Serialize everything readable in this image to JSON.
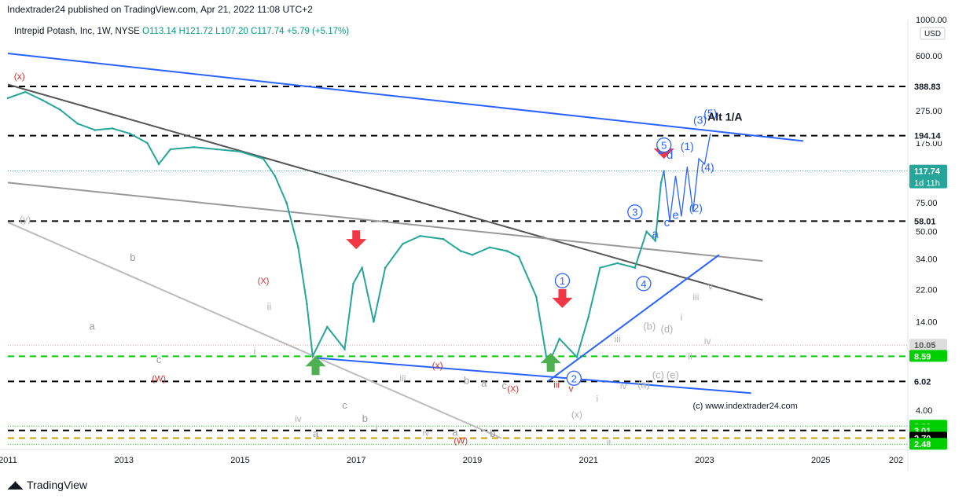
{
  "header": {
    "publisher": "Indextrader24 published on TradingView.com, Apr 21, 2022 11:08 UTC+2"
  },
  "symbol": {
    "name": "Intrepid Potash, Inc, 1W, NYSE",
    "open": "O113.14",
    "high": "H121.72",
    "low": "L107.20",
    "close": "C117.74",
    "change": "+5.79 (+5.17%)"
  },
  "footer": {
    "brand": "TradingView"
  },
  "chart_data": {
    "type": "line",
    "yscale": "log",
    "currency": "USD",
    "y_ticks": [
      "1000.00",
      "600.00",
      "275.00",
      "175.00",
      "75.00",
      "50.00",
      "34.00",
      "22.00",
      "14.00",
      "4.00"
    ],
    "x_ticks": [
      "2011",
      "2013",
      "2015",
      "2017",
      "2019",
      "2021",
      "2023",
      "2025",
      "202"
    ],
    "price_labels": [
      {
        "value": 388.83,
        "text": "388.83",
        "bg": "#ffffff",
        "fg": "#131722",
        "line": "#000000",
        "dash": "8,6",
        "lw": 2
      },
      {
        "value": 194.14,
        "text": "194.14",
        "bg": "#ffffff",
        "fg": "#131722",
        "line": "#000000",
        "dash": "8,6",
        "lw": 2
      },
      {
        "value": 117.74,
        "text": "117.74",
        "sub": "1d 11h",
        "bg": "#26a69a",
        "fg": "#ffffff",
        "line": "#26a69a",
        "dash": "1,2",
        "lw": 1
      },
      {
        "value": 58.01,
        "text": "58.01",
        "bg": "#ffffff",
        "fg": "#131722",
        "line": "#000000",
        "dash": "8,6",
        "lw": 2
      },
      {
        "value": 10.05,
        "text": "10.05",
        "bg": "#dddddd",
        "fg": "#555555",
        "line": "#e0a0a0",
        "dash": "1,2",
        "lw": 1
      },
      {
        "value": 8.59,
        "text": "8.59",
        "bg": "#00d000",
        "fg": "#ffffff",
        "line": "#00cc00",
        "dash": "8,6",
        "lw": 2
      },
      {
        "value": 6.02,
        "text": "6.02",
        "bg": "#ffffff",
        "fg": "#131722",
        "line": "#000000",
        "dash": "8,6",
        "lw": 2
      },
      {
        "value": 3.2,
        "text": "3.20",
        "bg": "#00d000",
        "fg": "#ffffff",
        "line": "#00cc00",
        "dash": "1,2",
        "lw": 1
      },
      {
        "value": 3.01,
        "text": "3.01",
        "bg": "#00d000",
        "fg": "#ffffff",
        "line": "#000000",
        "dash": "8,6",
        "lw": 2
      },
      {
        "value": 2.7,
        "text": "2.70",
        "bg": "#000000",
        "fg": "#ffffff",
        "line": "#c8a000",
        "dash": "8,6",
        "lw": 2
      },
      {
        "value": 2.48,
        "text": "2.48",
        "bg": "#00d000",
        "fg": "#ffffff",
        "line": "#00cc00",
        "dash": "1,2",
        "lw": 1
      }
    ],
    "series": [
      {
        "role": "price",
        "color": "#26a69a",
        "points": [
          [
            2011.0,
            330
          ],
          [
            2011.3,
            360
          ],
          [
            2011.6,
            320
          ],
          [
            2011.9,
            280
          ],
          [
            2012.2,
            230
          ],
          [
            2012.5,
            210
          ],
          [
            2012.8,
            215
          ],
          [
            2013.1,
            200
          ],
          [
            2013.4,
            175
          ],
          [
            2013.6,
            130
          ],
          [
            2013.8,
            160
          ],
          [
            2014.2,
            165
          ],
          [
            2014.6,
            160
          ],
          [
            2015.0,
            155
          ],
          [
            2015.4,
            140
          ],
          [
            2015.6,
            110
          ],
          [
            2015.8,
            75
          ],
          [
            2016.0,
            40
          ],
          [
            2016.15,
            18
          ],
          [
            2016.25,
            8.6
          ],
          [
            2016.5,
            13
          ],
          [
            2016.8,
            9.5
          ],
          [
            2016.95,
            24
          ],
          [
            2017.1,
            30
          ],
          [
            2017.3,
            14
          ],
          [
            2017.5,
            30
          ],
          [
            2017.8,
            42
          ],
          [
            2018.1,
            47
          ],
          [
            2018.5,
            45
          ],
          [
            2018.8,
            38
          ],
          [
            2019.0,
            36
          ],
          [
            2019.3,
            40
          ],
          [
            2019.6,
            38
          ],
          [
            2019.8,
            35
          ],
          [
            2020.1,
            20
          ],
          [
            2020.3,
            7.5
          ],
          [
            2020.5,
            11
          ],
          [
            2020.8,
            8.5
          ],
          [
            2021.0,
            15
          ],
          [
            2021.2,
            30
          ],
          [
            2021.5,
            32
          ],
          [
            2021.8,
            30
          ],
          [
            2022.0,
            50
          ],
          [
            2022.15,
            44
          ],
          [
            2022.25,
            100
          ],
          [
            2022.3,
            117.74
          ]
        ]
      }
    ],
    "trendlines": [
      {
        "from": [
          2011.0,
          620
        ],
        "to": [
          2024.7,
          180
        ],
        "color": "#2962ff",
        "lw": 2
      },
      {
        "from": [
          2011.0,
          400
        ],
        "to": [
          2024.0,
          19
        ],
        "color": "#555555",
        "lw": 2
      },
      {
        "from": [
          2011.0,
          100
        ],
        "to": [
          2024.0,
          33
        ],
        "color": "#999999",
        "lw": 2
      },
      {
        "from": [
          2011.0,
          57
        ],
        "to": [
          2019.5,
          2.7
        ],
        "color": "#bbbbbb",
        "lw": 2
      },
      {
        "from": [
          2016.3,
          8.4
        ],
        "to": [
          2023.8,
          5.1
        ],
        "color": "#2962ff",
        "lw": 2
      },
      {
        "from": [
          2020.3,
          6.02
        ],
        "to": [
          2023.25,
          36
        ],
        "color": "#2962ff",
        "lw": 2
      }
    ],
    "projection": {
      "color": "#2962ff",
      "points": [
        [
          2022.3,
          117
        ],
        [
          2022.4,
          58
        ],
        [
          2022.5,
          110
        ],
        [
          2022.6,
          62
        ],
        [
          2022.7,
          125
        ],
        [
          2022.8,
          66
        ],
        [
          2022.9,
          140
        ],
        [
          2023.0,
          130
        ],
        [
          2023.1,
          200
        ]
      ]
    },
    "arrows": [
      {
        "x": 2016.3,
        "y": 8.6,
        "dir": "up",
        "color": "#4caf50"
      },
      {
        "x": 2017.0,
        "y": 39,
        "dir": "down",
        "color": "#f23645"
      },
      {
        "x": 2020.35,
        "y": 9.0,
        "dir": "up",
        "color": "#4caf50"
      },
      {
        "x": 2020.55,
        "y": 17,
        "dir": "down",
        "color": "#f23645"
      },
      {
        "x": 2022.3,
        "y": 140,
        "dir": "down",
        "color": "#f23645"
      }
    ],
    "wave_labels": [
      {
        "text": "(x)",
        "x": 2011.2,
        "y": 430,
        "color": "#d32f2f",
        "size": 12
      },
      {
        "text": "(y)",
        "x": 2011.3,
        "y": 57,
        "color": "#b0b0b0",
        "size": 12
      },
      {
        "text": "b",
        "x": 2013.15,
        "y": 33,
        "color": "#999999",
        "size": 13
      },
      {
        "text": "a",
        "x": 2012.45,
        "y": 12.5,
        "color": "#999999",
        "size": 13
      },
      {
        "text": "c",
        "x": 2013.6,
        "y": 7.8,
        "color": "#999999",
        "size": 13
      },
      {
        "text": "(X)",
        "x": 2015.4,
        "y": 24,
        "color": "#d32f2f",
        "size": 11
      },
      {
        "text": "(W)",
        "x": 2013.6,
        "y": 6.0,
        "color": "#d32f2f",
        "size": 11
      },
      {
        "text": "ii",
        "x": 2015.5,
        "y": 16.5,
        "color": "#b0b0b0",
        "size": 13
      },
      {
        "text": "i",
        "x": 2015.25,
        "y": 8.8,
        "color": "#b0b0b0",
        "size": 13
      },
      {
        "text": "iv",
        "x": 2016.0,
        "y": 3.4,
        "color": "#b0b0b0",
        "size": 12
      },
      {
        "text": "a",
        "x": 2016.3,
        "y": 2.75,
        "color": "#999999",
        "size": 13
      },
      {
        "text": "c",
        "x": 2016.8,
        "y": 4.1,
        "color": "#999999",
        "size": 13
      },
      {
        "text": "b",
        "x": 2017.15,
        "y": 3.4,
        "color": "#999999",
        "size": 13
      },
      {
        "text": "i",
        "x": 2017.35,
        "y": 3.0,
        "color": "#b0b0b0",
        "size": 12
      },
      {
        "text": "iii",
        "x": 2017.8,
        "y": 6.0,
        "color": "#b0b0b0",
        "size": 12
      },
      {
        "text": "iv",
        "x": 2018.2,
        "y": 2.8,
        "color": "#b0b0b0",
        "size": 12
      },
      {
        "text": "(x)",
        "x": 2018.4,
        "y": 7.2,
        "color": "#d32f2f",
        "size": 12
      },
      {
        "text": "b",
        "x": 2018.9,
        "y": 5.8,
        "color": "#999999",
        "size": 13
      },
      {
        "text": "a",
        "x": 2019.2,
        "y": 5.6,
        "color": "#999999",
        "size": 13
      },
      {
        "text": "c",
        "x": 2019.55,
        "y": 5.4,
        "color": "#999999",
        "size": 13
      },
      {
        "text": "a",
        "x": 2018.7,
        "y": 2.8,
        "color": "#999999",
        "size": 13
      },
      {
        "text": "b",
        "x": 2019.35,
        "y": 2.75,
        "color": "#999999",
        "size": 13
      },
      {
        "text": "(W)",
        "x": 2018.8,
        "y": 2.5,
        "color": "#d32f2f",
        "size": 11
      },
      {
        "text": "(X)",
        "x": 2019.7,
        "y": 5.2,
        "color": "#d32f2f",
        "size": 11
      },
      {
        "text": "iii",
        "x": 2020.45,
        "y": 5.5,
        "color": "#d32f2f",
        "size": 12
      },
      {
        "text": "v",
        "x": 2020.7,
        "y": 5.2,
        "color": "#d32f2f",
        "size": 12
      },
      {
        "text": "(x)",
        "x": 2020.8,
        "y": 3.6,
        "color": "#b0b0b0",
        "size": 12
      },
      {
        "text": "i",
        "x": 2021.15,
        "y": 4.5,
        "color": "#b0b0b0",
        "size": 12
      },
      {
        "text": "ii",
        "x": 2021.35,
        "y": 2.45,
        "color": "#b0b0b0",
        "size": 12
      },
      {
        "text": "iii",
        "x": 2021.5,
        "y": 10.5,
        "color": "#b0b0b0",
        "size": 12
      },
      {
        "text": "iv",
        "x": 2021.6,
        "y": 5.4,
        "color": "#b0b0b0",
        "size": 12
      },
      {
        "text": "(a)",
        "x": 2021.95,
        "y": 5.5,
        "color": "#b0b0b0",
        "size": 13
      },
      {
        "text": "(b)",
        "x": 2022.05,
        "y": 12.5,
        "color": "#b0b0b0",
        "size": 13
      },
      {
        "text": "(c)",
        "x": 2022.2,
        "y": 6.3,
        "color": "#b0b0b0",
        "size": 13
      },
      {
        "text": "(d)",
        "x": 2022.35,
        "y": 12.0,
        "color": "#b0b0b0",
        "size": 13
      },
      {
        "text": "(e)",
        "x": 2022.45,
        "y": 6.3,
        "color": "#b0b0b0",
        "size": 13
      },
      {
        "text": "i",
        "x": 2022.6,
        "y": 14.2,
        "color": "#b0b0b0",
        "size": 12
      },
      {
        "text": "ii",
        "x": 2022.75,
        "y": 8.2,
        "color": "#b0b0b0",
        "size": 12
      },
      {
        "text": "iii",
        "x": 2022.85,
        "y": 19,
        "color": "#b0b0b0",
        "size": 12
      },
      {
        "text": "iv",
        "x": 2023.05,
        "y": 10.2,
        "color": "#b0b0b0",
        "size": 12
      },
      {
        "text": "v",
        "x": 2023.1,
        "y": 22,
        "color": "#b0b0b0",
        "size": 12
      },
      {
        "text": "a",
        "x": 2022.15,
        "y": 46,
        "color": "#2962ff",
        "size": 15
      },
      {
        "text": "c",
        "x": 2022.35,
        "y": 54,
        "color": "#2962ff",
        "size": 15
      },
      {
        "text": "e",
        "x": 2022.5,
        "y": 60,
        "color": "#2962ff",
        "size": 15
      },
      {
        "text": "b",
        "x": 2022.25,
        "y": 150,
        "color": "#2962ff",
        "size": 15
      },
      {
        "text": "d",
        "x": 2022.4,
        "y": 140,
        "color": "#2962ff",
        "size": 15
      },
      {
        "text": "(1)",
        "x": 2022.7,
        "y": 158,
        "color": "#2962ff",
        "size": 14
      },
      {
        "text": "(2)",
        "x": 2022.85,
        "y": 66,
        "color": "#2962ff",
        "size": 14
      },
      {
        "text": "(4)",
        "x": 2023.05,
        "y": 118,
        "color": "#2962ff",
        "size": 14
      },
      {
        "text": "(3)",
        "x": 2022.92,
        "y": 230,
        "color": "#2962ff",
        "size": 14
      },
      {
        "text": "(5)",
        "x": 2023.1,
        "y": 252,
        "color": "#2962ff",
        "size": 14
      },
      {
        "text": "Alt 1/A",
        "x": 2023.35,
        "y": 240,
        "color": "#131722",
        "size": 14,
        "bold": true
      },
      {
        "text": "(c) www.indextrader24.com",
        "x": 2023.7,
        "y": 4.1,
        "color": "#131722",
        "size": 11
      }
    ],
    "circled_labels": [
      {
        "text": "1",
        "x": 2020.55,
        "y": 25
      },
      {
        "text": "2",
        "x": 2020.75,
        "y": 6.3
      },
      {
        "text": "3",
        "x": 2021.8,
        "y": 66
      },
      {
        "text": "4",
        "x": 2021.95,
        "y": 24
      },
      {
        "text": "5",
        "x": 2022.3,
        "y": 170
      }
    ]
  }
}
